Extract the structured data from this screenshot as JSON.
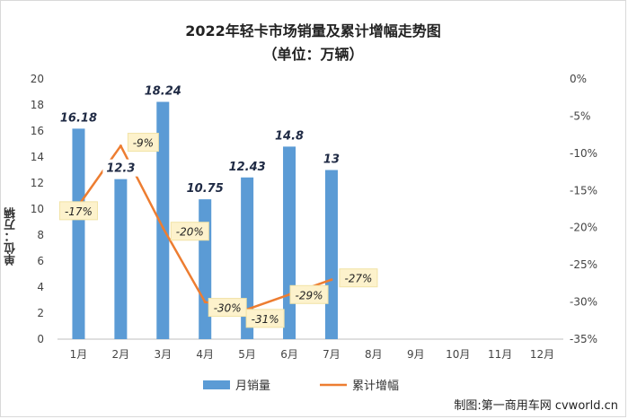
{
  "chart_data": {
    "type": "bar+line",
    "title": "2022年轻卡市场销量及累计增幅走势图",
    "subtitle": "（单位：万辆）",
    "ylabel": "单位：万辆",
    "categories": [
      "1月",
      "2月",
      "3月",
      "4月",
      "5月",
      "6月",
      "7月",
      "8月",
      "9月",
      "10月",
      "11月",
      "12月"
    ],
    "bar_series": {
      "name": "月销量",
      "values": [
        16.18,
        12.3,
        18.24,
        10.75,
        12.43,
        14.8,
        13
      ],
      "labels": [
        "16.18",
        "12.3",
        "18.24",
        "10.75",
        "12.43",
        "14.8",
        "13"
      ],
      "color": "#5b9bd5"
    },
    "line_series": {
      "name": "累计增幅",
      "values": [
        -17,
        -9,
        -20,
        -30,
        -31,
        -29,
        -27
      ],
      "labels": [
        "-17%",
        "-9%",
        "-20%",
        "-30%",
        "-31%",
        "-29%",
        "-27%"
      ],
      "color": "#ed7d31"
    },
    "left_axis": {
      "ylim": [
        0,
        20
      ],
      "ticks": [
        "0",
        "2",
        "4",
        "6",
        "8",
        "10",
        "12",
        "14",
        "16",
        "18",
        "20"
      ]
    },
    "right_axis": {
      "ylim": [
        -35,
        0
      ],
      "ticks": [
        "-35%",
        "-30%",
        "-25%",
        "-20%",
        "-15%",
        "-10%",
        "-5%",
        "0%"
      ]
    },
    "grid": false,
    "legend_position": "bottom"
  },
  "credit": "制图:第一商用车网 cvworld.cn"
}
